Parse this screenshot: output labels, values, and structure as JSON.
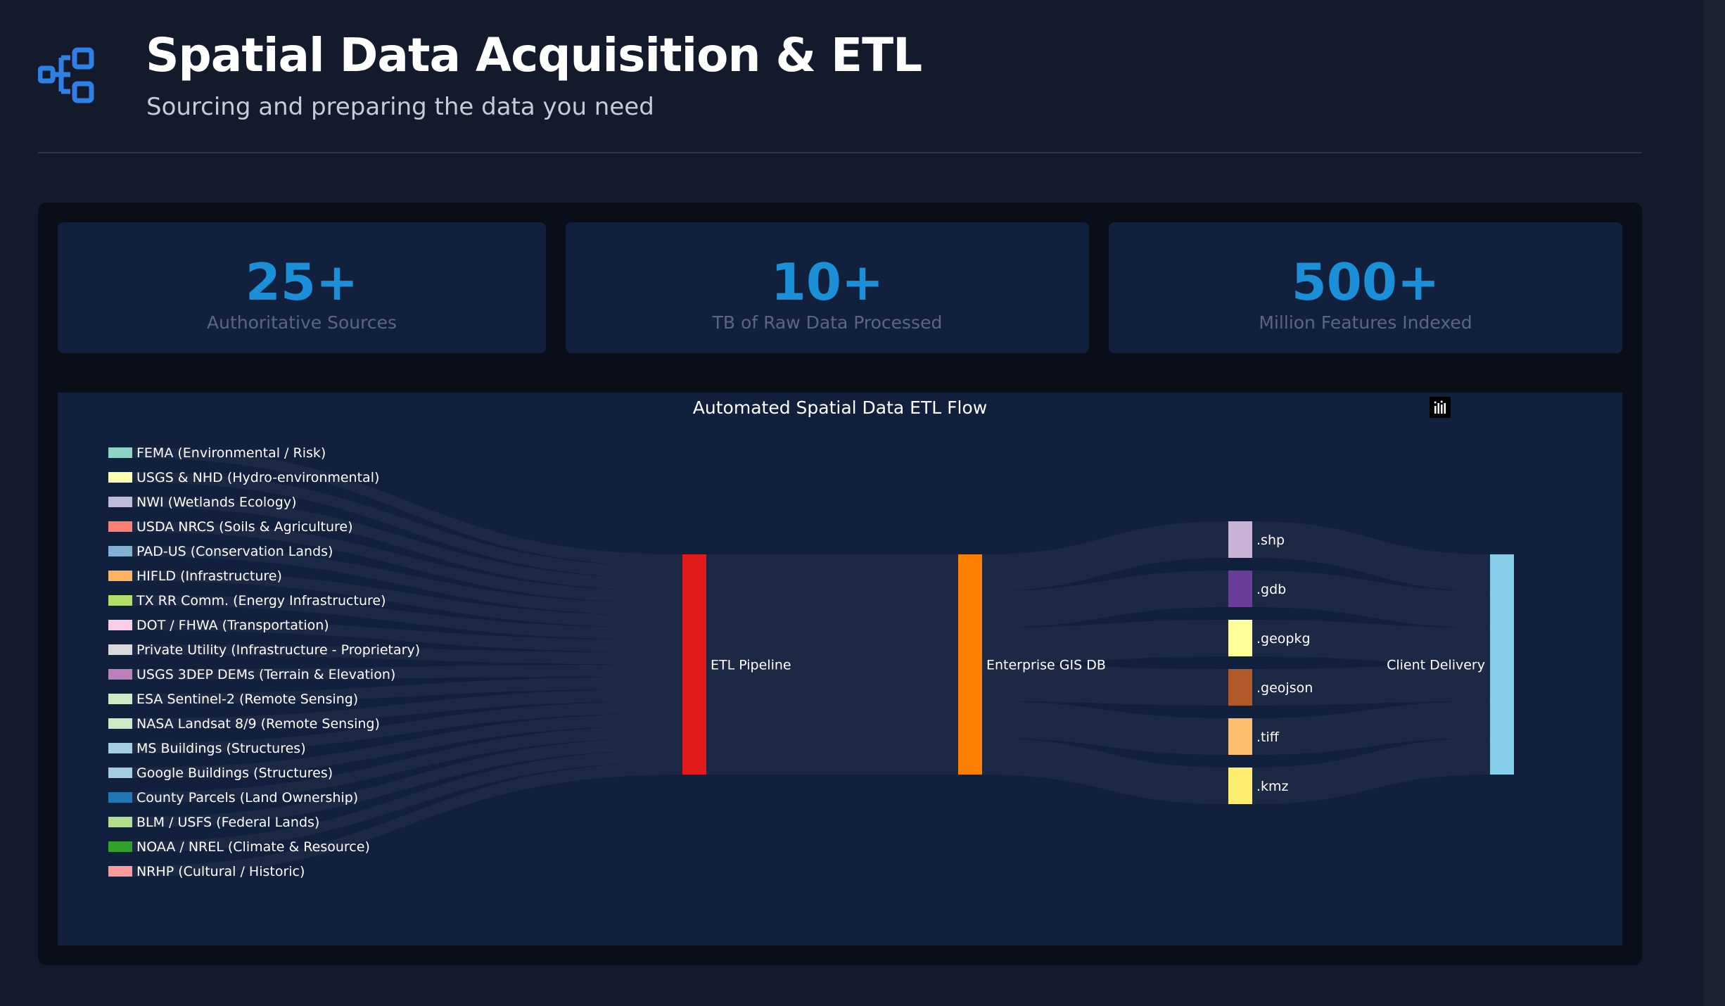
{
  "header": {
    "title": "Spatial Data Acquisition & ETL",
    "subtitle": "Sourcing and preparing the data you need",
    "logo_icon": "workflow-nodes-icon"
  },
  "stats": [
    {
      "value": "25+",
      "label": "Authoritative Sources"
    },
    {
      "value": "10+",
      "label": "TB of Raw Data Processed"
    },
    {
      "value": "500+",
      "label": "Million Features Indexed"
    }
  ],
  "chart_modebar": [
    "camera-icon",
    "box-select-icon",
    "lasso-select-icon",
    "home-icon",
    "plotly-logo-icon"
  ],
  "colors": {
    "background": "#121a2b",
    "panel": "#090e18",
    "card": "#11203c",
    "accent": "#1c8fd9",
    "link": "#1e2c45"
  },
  "chart_data": {
    "type": "sankey",
    "title": "Automated Spatial Data ETL Flow",
    "sources": [
      {
        "name": "FEMA (Environmental / Risk)",
        "color": "#8dd3c7"
      },
      {
        "name": "USGS & NHD (Hydro-environmental)",
        "color": "#ffffb3"
      },
      {
        "name": "NWI (Wetlands Ecology)",
        "color": "#bebada"
      },
      {
        "name": "USDA NRCS (Soils & Agriculture)",
        "color": "#fb8072"
      },
      {
        "name": "PAD-US (Conservation Lands)",
        "color": "#80b1d3"
      },
      {
        "name": "HIFLD (Infrastructure)",
        "color": "#fdb462"
      },
      {
        "name": "TX RR Comm. (Energy Infrastructure)",
        "color": "#b3de69"
      },
      {
        "name": "DOT / FHWA (Transportation)",
        "color": "#fccde5"
      },
      {
        "name": "Private Utility (Infrastructure - Proprietary)",
        "color": "#d9d9d9"
      },
      {
        "name": "USGS 3DEP DEMs (Terrain & Elevation)",
        "color": "#bc80bd"
      },
      {
        "name": "ESA Sentinel-2 (Remote Sensing)",
        "color": "#ccebc5"
      },
      {
        "name": "NASA Landsat 8/9 (Remote Sensing)",
        "color": "#ccebc5"
      },
      {
        "name": "MS Buildings (Structures)",
        "color": "#a6cee3"
      },
      {
        "name": "Google Buildings (Structures)",
        "color": "#a6cee3"
      },
      {
        "name": "County Parcels (Land Ownership)",
        "color": "#1f78b4"
      },
      {
        "name": "BLM / USFS (Federal Lands)",
        "color": "#b2df8a"
      },
      {
        "name": "NOAA / NREL (Climate & Resource)",
        "color": "#33a02c"
      },
      {
        "name": "NRHP (Cultural / Historic)",
        "color": "#fb9a99"
      }
    ],
    "stages": [
      {
        "name": "ETL Pipeline",
        "color": "#e31a1c"
      },
      {
        "name": "Enterprise GIS DB",
        "color": "#ff7f00"
      }
    ],
    "formats": [
      {
        "name": ".shp",
        "color": "#cab2d6"
      },
      {
        "name": ".gdb",
        "color": "#6a3d9a"
      },
      {
        "name": ".geopkg",
        "color": "#ffff99"
      },
      {
        "name": ".geojson",
        "color": "#b15928"
      },
      {
        "name": ".tiff",
        "color": "#fdbf6f"
      },
      {
        "name": ".kmz",
        "color": "#ffed6f"
      }
    ],
    "target": {
      "name": "Client Delivery",
      "color": "#87ceeb"
    },
    "flows": {
      "source_to_etl": [
        1,
        1,
        1,
        1,
        1,
        1,
        1,
        1,
        1,
        1,
        1,
        1,
        1,
        1,
        1,
        1,
        1,
        1
      ],
      "etl_to_db": 18,
      "db_to_format": [
        3,
        3,
        3,
        3,
        3,
        3
      ],
      "format_to_target": [
        3,
        3,
        3,
        3,
        3,
        3
      ]
    }
  }
}
